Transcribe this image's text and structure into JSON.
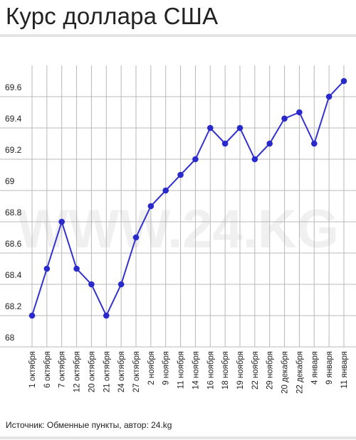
{
  "header": {
    "title": "Курс доллара США"
  },
  "watermark": "WWW.24.KG",
  "footer": {
    "source": "Источник: Обменные пункты, автор: 24.kg"
  },
  "chart_data": {
    "type": "line",
    "title": "Курс доллара США",
    "xlabel": "",
    "ylabel": "",
    "categories": [
      "1 октября",
      "6 октября",
      "7 октября",
      "12 октября",
      "20 октября",
      "21 октября",
      "24 октября",
      "27 октября",
      "2 ноября",
      "9 ноября",
      "11 ноября",
      "14 ноября",
      "16 ноября",
      "18 ноября",
      "19 ноября",
      "22 ноября",
      "29 ноября",
      "20 декабря",
      "22 декабря",
      "4 января",
      "9 января",
      "11 января"
    ],
    "series": [
      {
        "values": [
          68.2,
          68.5,
          68.8,
          68.5,
          68.4,
          68.2,
          68.4,
          68.7,
          68.9,
          69.0,
          69.1,
          69.2,
          69.4,
          69.3,
          69.4,
          69.2,
          69.3,
          69.46,
          69.5,
          69.3,
          69.6,
          69.7
        ]
      }
    ],
    "ylim": [
      68,
      69.8
    ],
    "yticks": [
      68,
      68.2,
      68.4,
      68.6,
      68.8,
      69,
      69.2,
      69.4,
      69.6
    ],
    "ytick_labels": [
      "68",
      "68.2",
      "68.4",
      "68.6",
      "68.8",
      "69",
      "69.2",
      "69.4",
      "69.6"
    ],
    "grid": true,
    "colors": {
      "line": "#3333cc",
      "marker": "#2a2acc",
      "grid": "#b8b8b8"
    }
  }
}
